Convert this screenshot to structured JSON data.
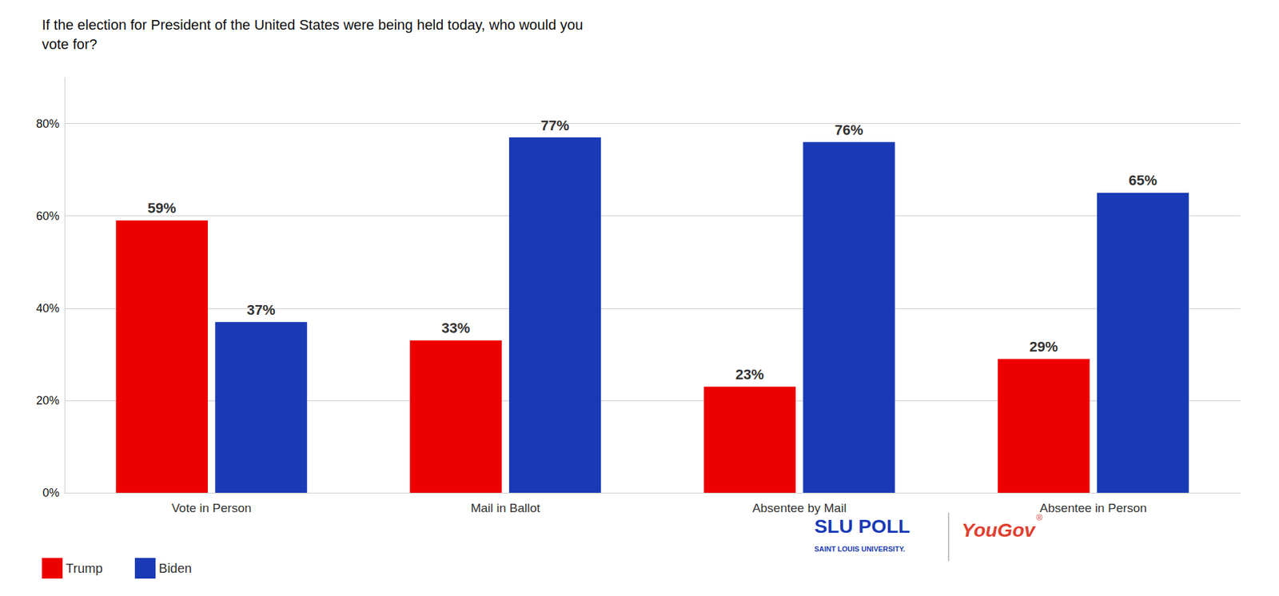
{
  "chart_data": {
    "type": "bar",
    "title": "If the election for President of the United States were being held today, who would you\nvote for?",
    "categories": [
      "Vote in Person",
      "Mail in Ballot",
      "Absentee by Mail",
      "Absentee in Person"
    ],
    "series": [
      {
        "name": "Trump",
        "color": "#ee0000",
        "values": [
          59,
          33,
          23,
          29
        ],
        "value_labels": [
          "59%",
          "33%",
          "23%",
          "29%"
        ]
      },
      {
        "name": "Biden",
        "color": "#1a3ab5",
        "values": [
          37,
          77,
          76,
          65
        ],
        "value_labels": [
          "37%",
          "77%",
          "76%",
          "65%"
        ]
      }
    ],
    "ylim": [
      0,
      90
    ],
    "yticks": [
      {
        "value": 0,
        "label": "0%"
      },
      {
        "value": 20,
        "label": "20%"
      },
      {
        "value": 40,
        "label": "40%"
      },
      {
        "value": 60,
        "label": "60%"
      },
      {
        "value": 80,
        "label": "80%"
      }
    ],
    "grid": true,
    "legend": "lower left",
    "data_labels": true,
    "annotations": [
      {
        "text": "SLU POLL",
        "color": "#1a3ab5"
      },
      {
        "text": "SAINT LOUIS UNIVERSITY.",
        "color": "#1a3ab5"
      },
      {
        "text": "YouGov",
        "color": "#e04030"
      },
      {
        "text": "®",
        "color": "#e04030"
      }
    ]
  }
}
